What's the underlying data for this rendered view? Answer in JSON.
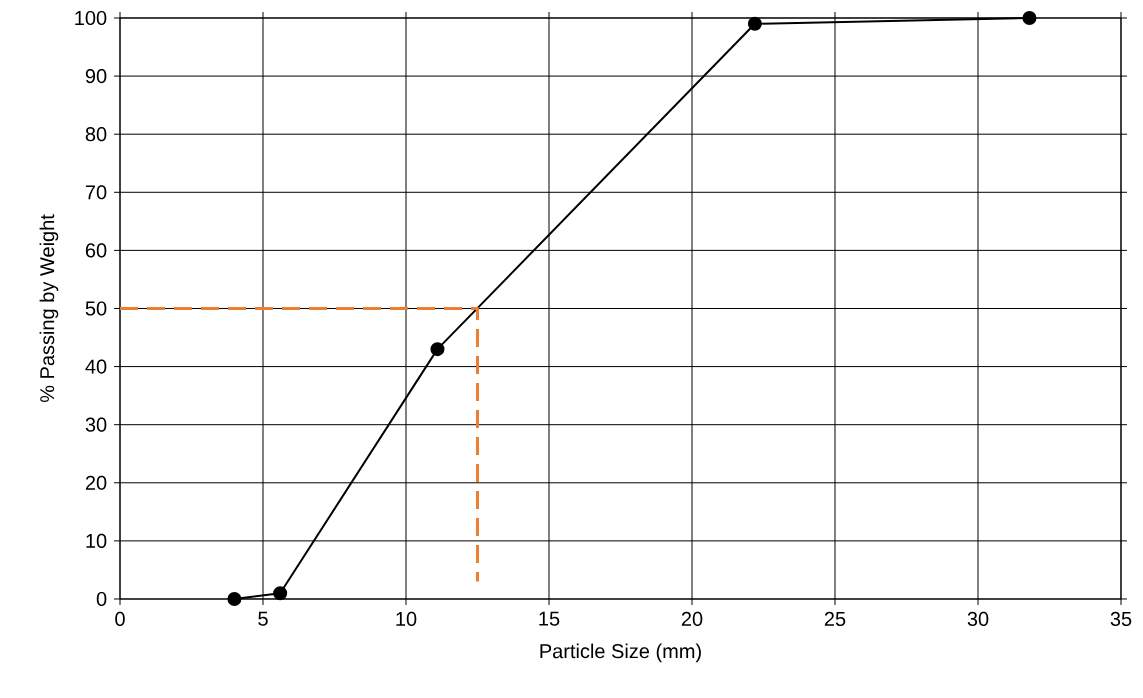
{
  "chart_data": {
    "type": "line",
    "xlabel": "Particle Size (mm)",
    "ylabel": "% Passing by Weight",
    "xlim": [
      0,
      35
    ],
    "ylim": [
      0,
      100
    ],
    "xticks": [
      0,
      5,
      10,
      15,
      20,
      25,
      30,
      35
    ],
    "yticks": [
      0,
      10,
      20,
      30,
      40,
      50,
      60,
      70,
      80,
      90,
      100
    ],
    "grid": true,
    "marker": "circle",
    "line_style": "solid",
    "series": [
      {
        "color": "#000000",
        "x": [
          4.0,
          5.6,
          11.1,
          22.2,
          31.8
        ],
        "values": [
          0,
          1,
          43,
          99,
          100
        ]
      },
      {
        "color": "#ed7d31",
        "x": [
          0,
          12.5,
          12.5
        ],
        "values": [
          50,
          50,
          3
        ],
        "marker": "none",
        "line_style": "dashed"
      }
    ]
  }
}
